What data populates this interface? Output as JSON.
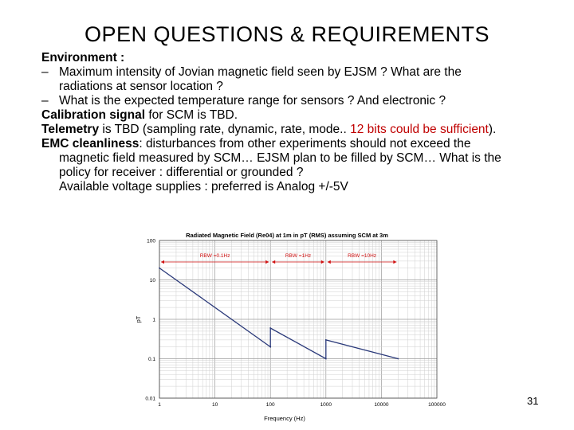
{
  "slide": {
    "title": "OPEN QUESTIONS & REQUIREMENTS",
    "page_number": "31",
    "env_label": "Environment :",
    "q1_line1": "Maximum intensity of Jovian magnetic field seen by EJSM ? What are the",
    "q1_line2": "radiations at sensor location ?",
    "q2": "What is the expected temperature range for sensors ? And electronic ?",
    "cal_bold": "Calibration signal",
    "cal_rest": " for SCM is TBD.",
    "tel_bold": "Telemetry",
    "tel_rest": " is TBD (sampling rate, dynamic, rate, mode.. ",
    "tel_red": "12 bits could be sufficient",
    "tel_end": ").",
    "emc_bold": "EMC cleanliness",
    "emc_rest": ": disturbances from other experiments should not exceed the",
    "emc_line2": "magnetic field measured by SCM… EJSM plan to be filled by SCM… What is the",
    "emc_line3": "policy for receiver : differential or grounded ?",
    "volt": "Available voltage supplies : preferred is Analog +/-5V"
  },
  "chart_data": {
    "type": "line",
    "title": "Radiated Magnetic Field (Re04) at 1m in pT (RMS) assuming SCM at 3m",
    "xlabel": "Frequency (Hz)",
    "ylabel": "pT",
    "x_scale": "log",
    "y_scale": "log",
    "xlim": [
      1,
      100000
    ],
    "ylim": [
      0.01,
      100
    ],
    "x_ticks": [
      "1",
      "10",
      "100",
      "1000",
      "10000",
      "100000"
    ],
    "y_ticks": [
      "100",
      "10",
      "1",
      "0.1",
      "0.01"
    ],
    "grid": true,
    "bands": [
      {
        "label": "RBW =0.1Hz",
        "from": 1,
        "to": 100
      },
      {
        "label": "RBW =1Hz",
        "from": 100,
        "to": 1000
      },
      {
        "label": "RBW =10Hz",
        "from": 1000,
        "to": 20000
      }
    ],
    "segments": [
      {
        "x": [
          1,
          100
        ],
        "y": [
          20,
          0.2
        ]
      },
      {
        "x": [
          100,
          1000
        ],
        "y": [
          0.6,
          0.1
        ]
      },
      {
        "x": [
          1000,
          20000
        ],
        "y": [
          0.3,
          0.1
        ]
      }
    ],
    "line_color": "#2b3a7a",
    "band_color": "#d01010"
  }
}
